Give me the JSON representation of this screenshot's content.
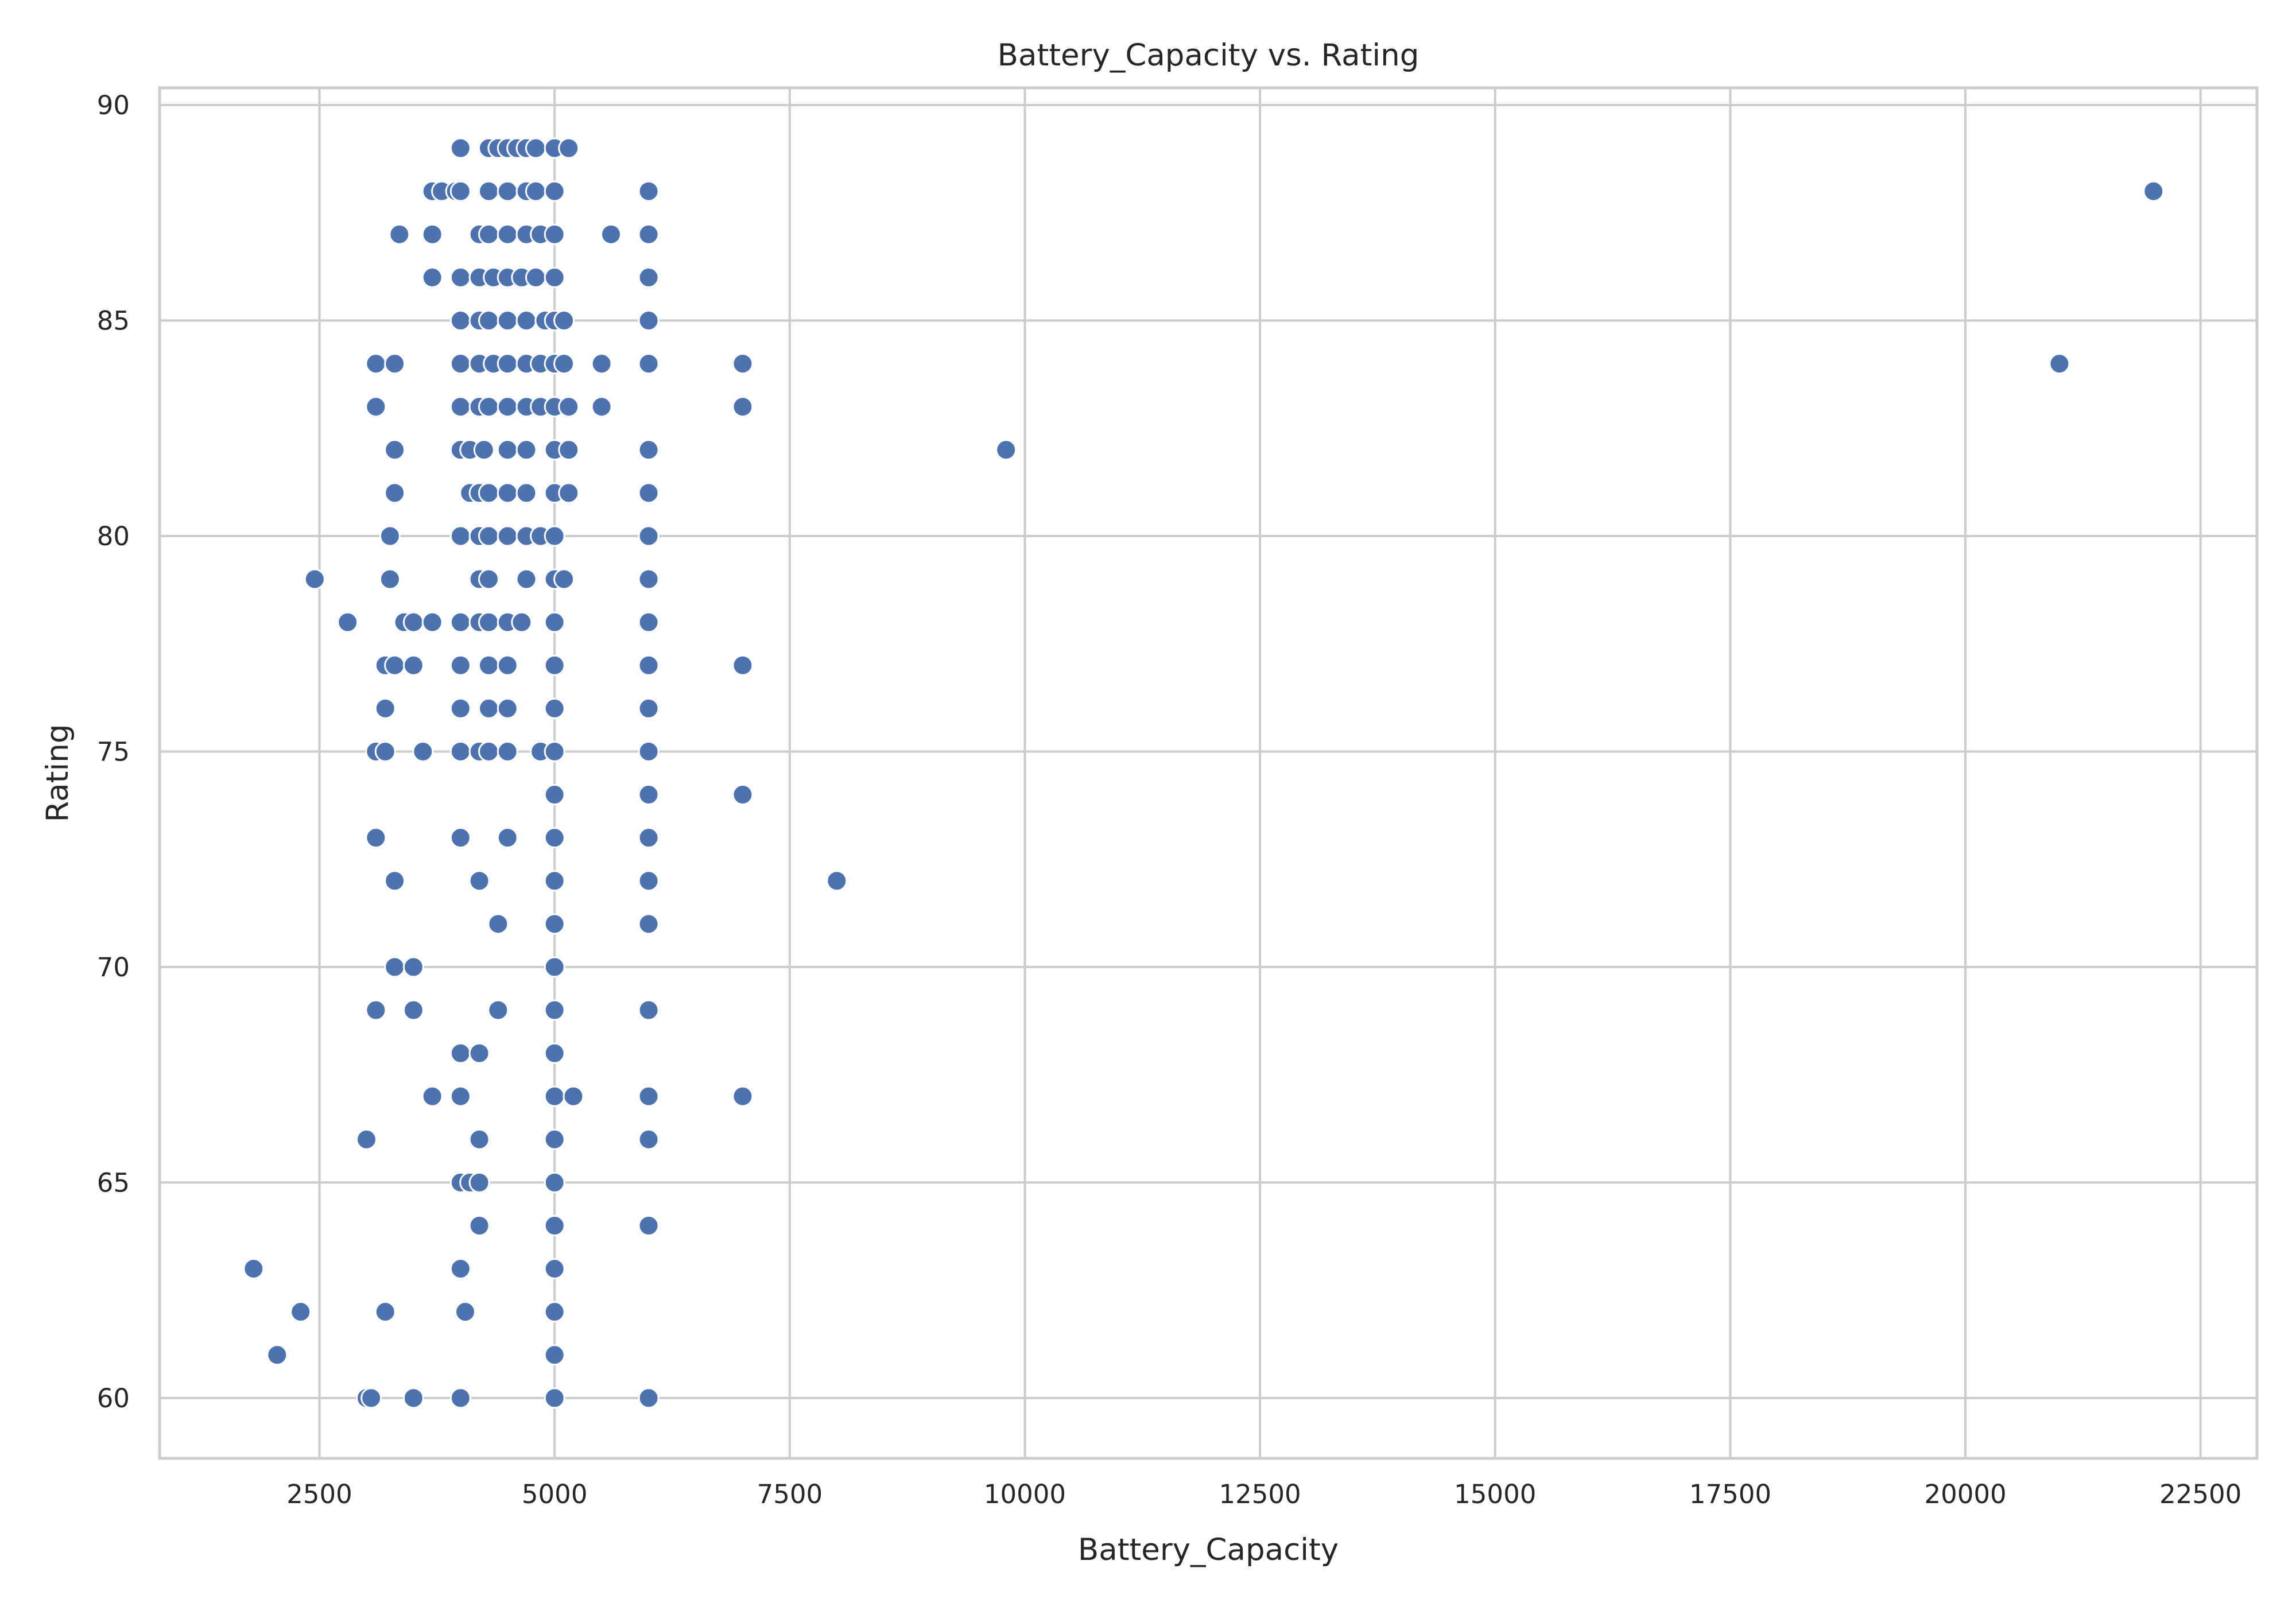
{
  "chart_data": {
    "type": "scatter",
    "title": "Battery_Capacity vs. Rating",
    "xlabel": "Battery_Capacity",
    "ylabel": "Rating",
    "xlim": [
      800,
      23100
    ],
    "ylim": [
      58.6,
      90.4
    ],
    "xticks": [
      2500,
      5000,
      7500,
      10000,
      12500,
      15000,
      17500,
      20000,
      22500
    ],
    "yticks": [
      60,
      65,
      70,
      75,
      80,
      85,
      90
    ],
    "grid": true,
    "point_color": "#4c72b0",
    "points": [
      [
        4000,
        89
      ],
      [
        4300,
        89
      ],
      [
        4400,
        89
      ],
      [
        4500,
        89
      ],
      [
        4600,
        89
      ],
      [
        4700,
        89
      ],
      [
        4800,
        89
      ],
      [
        5000,
        89
      ],
      [
        5150,
        89
      ],
      [
        3700,
        88
      ],
      [
        3800,
        88
      ],
      [
        3950,
        88
      ],
      [
        4000,
        88
      ],
      [
        4300,
        88
      ],
      [
        4500,
        88
      ],
      [
        4700,
        88
      ],
      [
        4800,
        88
      ],
      [
        5000,
        88
      ],
      [
        6000,
        88
      ],
      [
        22000,
        88
      ],
      [
        3350,
        87
      ],
      [
        3700,
        87
      ],
      [
        4200,
        87
      ],
      [
        4300,
        87
      ],
      [
        4500,
        87
      ],
      [
        4700,
        87
      ],
      [
        4850,
        87
      ],
      [
        5000,
        87
      ],
      [
        5600,
        87
      ],
      [
        6000,
        87
      ],
      [
        3700,
        86
      ],
      [
        4000,
        86
      ],
      [
        4200,
        86
      ],
      [
        4350,
        86
      ],
      [
        4500,
        86
      ],
      [
        4650,
        86
      ],
      [
        4800,
        86
      ],
      [
        5000,
        86
      ],
      [
        6000,
        86
      ],
      [
        4000,
        85
      ],
      [
        4200,
        85
      ],
      [
        4300,
        85
      ],
      [
        4500,
        85
      ],
      [
        4700,
        85
      ],
      [
        4900,
        85
      ],
      [
        5000,
        85
      ],
      [
        5100,
        85
      ],
      [
        6000,
        85
      ],
      [
        3100,
        84
      ],
      [
        3300,
        84
      ],
      [
        4000,
        84
      ],
      [
        4200,
        84
      ],
      [
        4350,
        84
      ],
      [
        4500,
        84
      ],
      [
        4700,
        84
      ],
      [
        4850,
        84
      ],
      [
        5000,
        84
      ],
      [
        5100,
        84
      ],
      [
        5500,
        84
      ],
      [
        6000,
        84
      ],
      [
        7000,
        84
      ],
      [
        21000,
        84
      ],
      [
        3100,
        83
      ],
      [
        4000,
        83
      ],
      [
        4200,
        83
      ],
      [
        4300,
        83
      ],
      [
        4500,
        83
      ],
      [
        4700,
        83
      ],
      [
        4850,
        83
      ],
      [
        5000,
        83
      ],
      [
        5150,
        83
      ],
      [
        5500,
        83
      ],
      [
        7000,
        83
      ],
      [
        3300,
        82
      ],
      [
        4000,
        82
      ],
      [
        4100,
        82
      ],
      [
        4250,
        82
      ],
      [
        4500,
        82
      ],
      [
        4700,
        82
      ],
      [
        5000,
        82
      ],
      [
        5150,
        82
      ],
      [
        6000,
        82
      ],
      [
        9800,
        82
      ],
      [
        3300,
        81
      ],
      [
        4100,
        81
      ],
      [
        4200,
        81
      ],
      [
        4300,
        81
      ],
      [
        4500,
        81
      ],
      [
        4700,
        81
      ],
      [
        5000,
        81
      ],
      [
        5150,
        81
      ],
      [
        6000,
        81
      ],
      [
        3250,
        80
      ],
      [
        4000,
        80
      ],
      [
        4200,
        80
      ],
      [
        4300,
        80
      ],
      [
        4500,
        80
      ],
      [
        4700,
        80
      ],
      [
        4850,
        80
      ],
      [
        5000,
        80
      ],
      [
        6000,
        80
      ],
      [
        2450,
        79
      ],
      [
        3250,
        79
      ],
      [
        4200,
        79
      ],
      [
        4300,
        79
      ],
      [
        4700,
        79
      ],
      [
        5000,
        79
      ],
      [
        5100,
        79
      ],
      [
        6000,
        79
      ],
      [
        2800,
        78
      ],
      [
        3400,
        78
      ],
      [
        3500,
        78
      ],
      [
        3700,
        78
      ],
      [
        4000,
        78
      ],
      [
        4200,
        78
      ],
      [
        4300,
        78
      ],
      [
        4500,
        78
      ],
      [
        4650,
        78
      ],
      [
        5000,
        78
      ],
      [
        6000,
        78
      ],
      [
        3200,
        77
      ],
      [
        3300,
        77
      ],
      [
        3500,
        77
      ],
      [
        4000,
        77
      ],
      [
        4300,
        77
      ],
      [
        4500,
        77
      ],
      [
        5000,
        77
      ],
      [
        6000,
        77
      ],
      [
        7000,
        77
      ],
      [
        3200,
        76
      ],
      [
        4000,
        76
      ],
      [
        4300,
        76
      ],
      [
        4500,
        76
      ],
      [
        5000,
        76
      ],
      [
        6000,
        76
      ],
      [
        3100,
        75
      ],
      [
        3200,
        75
      ],
      [
        3600,
        75
      ],
      [
        4000,
        75
      ],
      [
        4200,
        75
      ],
      [
        4300,
        75
      ],
      [
        4500,
        75
      ],
      [
        4850,
        75
      ],
      [
        5000,
        75
      ],
      [
        6000,
        75
      ],
      [
        5000,
        74
      ],
      [
        6000,
        74
      ],
      [
        7000,
        74
      ],
      [
        3100,
        73
      ],
      [
        4000,
        73
      ],
      [
        4500,
        73
      ],
      [
        5000,
        73
      ],
      [
        6000,
        73
      ],
      [
        3300,
        72
      ],
      [
        4200,
        72
      ],
      [
        5000,
        72
      ],
      [
        6000,
        72
      ],
      [
        8000,
        72
      ],
      [
        4400,
        71
      ],
      [
        5000,
        71
      ],
      [
        6000,
        71
      ],
      [
        3300,
        70
      ],
      [
        3500,
        70
      ],
      [
        5000,
        70
      ],
      [
        3100,
        69
      ],
      [
        3500,
        69
      ],
      [
        4400,
        69
      ],
      [
        5000,
        69
      ],
      [
        6000,
        69
      ],
      [
        4000,
        68
      ],
      [
        4200,
        68
      ],
      [
        5000,
        68
      ],
      [
        3700,
        67
      ],
      [
        4000,
        67
      ],
      [
        5000,
        67
      ],
      [
        5200,
        67
      ],
      [
        6000,
        67
      ],
      [
        7000,
        67
      ],
      [
        3000,
        66
      ],
      [
        4200,
        66
      ],
      [
        5000,
        66
      ],
      [
        6000,
        66
      ],
      [
        4000,
        65
      ],
      [
        4100,
        65
      ],
      [
        4200,
        65
      ],
      [
        5000,
        65
      ],
      [
        4200,
        64
      ],
      [
        5000,
        64
      ],
      [
        6000,
        64
      ],
      [
        1800,
        63
      ],
      [
        4000,
        63
      ],
      [
        5000,
        63
      ],
      [
        2300,
        62
      ],
      [
        3200,
        62
      ],
      [
        4050,
        62
      ],
      [
        5000,
        62
      ],
      [
        2050,
        61
      ],
      [
        5000,
        61
      ],
      [
        3000,
        60
      ],
      [
        3050,
        60
      ],
      [
        3500,
        60
      ],
      [
        4000,
        60
      ],
      [
        5000,
        60
      ],
      [
        6000,
        60
      ]
    ]
  }
}
